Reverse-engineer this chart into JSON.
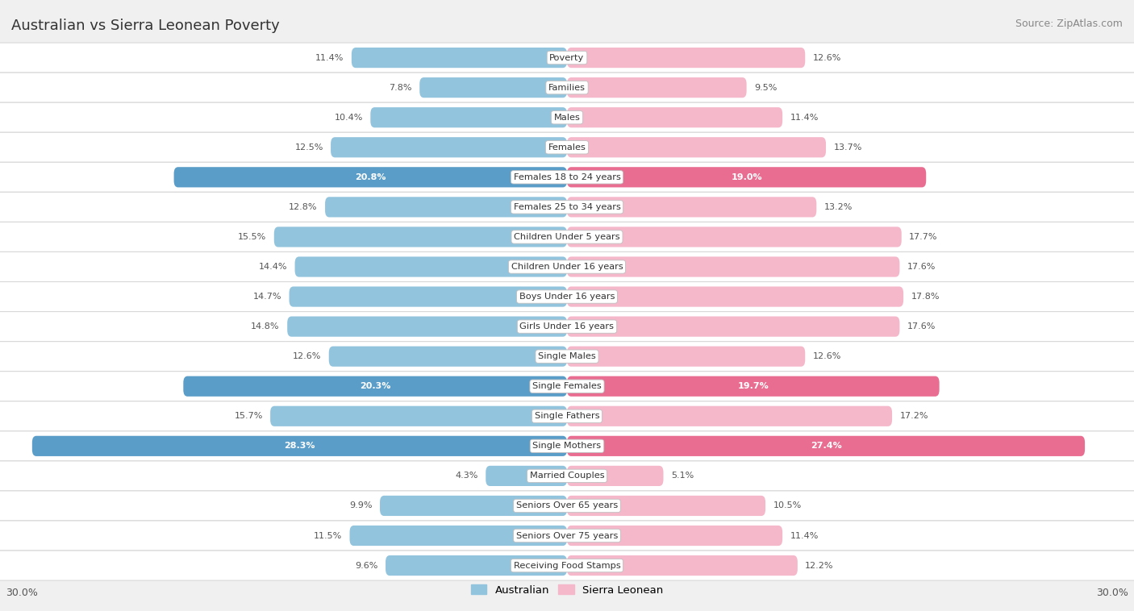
{
  "title": "Australian vs Sierra Leonean Poverty",
  "source": "Source: ZipAtlas.com",
  "categories": [
    "Poverty",
    "Families",
    "Males",
    "Females",
    "Females 18 to 24 years",
    "Females 25 to 34 years",
    "Children Under 5 years",
    "Children Under 16 years",
    "Boys Under 16 years",
    "Girls Under 16 years",
    "Single Males",
    "Single Females",
    "Single Fathers",
    "Single Mothers",
    "Married Couples",
    "Seniors Over 65 years",
    "Seniors Over 75 years",
    "Receiving Food Stamps"
  ],
  "australian": [
    11.4,
    7.8,
    10.4,
    12.5,
    20.8,
    12.8,
    15.5,
    14.4,
    14.7,
    14.8,
    12.6,
    20.3,
    15.7,
    28.3,
    4.3,
    9.9,
    11.5,
    9.6
  ],
  "sierra_leonean": [
    12.6,
    9.5,
    11.4,
    13.7,
    19.0,
    13.2,
    17.7,
    17.6,
    17.8,
    17.6,
    12.6,
    19.7,
    17.2,
    27.4,
    5.1,
    10.5,
    11.4,
    12.2
  ],
  "australian_color_normal": "#93c4de",
  "sierra_leonean_color_normal": "#f5b8cb",
  "australian_color_highlight": "#5a9dc8",
  "sierra_leonean_color_highlight": "#e96d90",
  "label_color_normal": "#555555",
  "label_color_highlight": "#ffffff",
  "row_bg_odd": "#f5f5f5",
  "row_bg_even": "#ffffff",
  "background_color": "#f0f0f0",
  "axis_max": 30.0,
  "highlight_rows": [
    4,
    11,
    13
  ],
  "legend_australian": "Australian",
  "legend_sierra": "Sierra Leonean"
}
